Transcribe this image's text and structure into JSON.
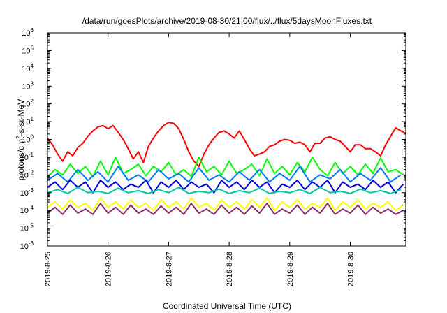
{
  "chart_data": {
    "type": "line",
    "title": "/data/run/goesPlots/archive/2019-08-30/21:00/flux/../flux/5daysMoonFluxes.txt",
    "xlabel": "Coordinated Universal Time (UTC)",
    "ylabel": "protons/cm²-s-sr-MeV",
    "ylabel_parts": {
      "pre": "protons/cm",
      "sup": "2",
      "post": "-s-sr-MeV"
    },
    "y_scale": "log",
    "ylim": [
      1e-06,
      1000000
    ],
    "xlim": [
      "2019-08-25T00:00",
      "2019-08-30T22:00"
    ],
    "y_ticks": [
      {
        "exp": "-6",
        "value": 1e-06
      },
      {
        "exp": "-5",
        "value": 1e-05
      },
      {
        "exp": "-4",
        "value": 0.0001
      },
      {
        "exp": "-3",
        "value": 0.001
      },
      {
        "exp": "-2",
        "value": 0.01
      },
      {
        "exp": "-1",
        "value": 0.1
      },
      {
        "exp": "0",
        "value": 1
      },
      {
        "exp": "1",
        "value": 10
      },
      {
        "exp": "2",
        "value": 100
      },
      {
        "exp": "3",
        "value": 1000
      },
      {
        "exp": "4",
        "value": 10000
      },
      {
        "exp": "5",
        "value": 100000
      },
      {
        "exp": "6",
        "value": 1000000
      }
    ],
    "y_tick_base": "10",
    "x_ticks": [
      {
        "label": "2019-8-25",
        "date": "2019-08-25T00:00"
      },
      {
        "label": "2019-8-26",
        "date": "2019-08-26T00:00"
      },
      {
        "label": "2019-8-27",
        "date": "2019-08-27T00:00"
      },
      {
        "label": "2019-8-28",
        "date": "2019-08-28T00:00"
      },
      {
        "label": "2019-8-29",
        "date": "2019-08-29T00:00"
      },
      {
        "label": "2019-8-30",
        "date": "2019-08-30T00:00"
      }
    ],
    "grid": false,
    "legend": "none",
    "series": [
      {
        "color": "#ff0000",
        "x": [
          "2019-08-25T00:00",
          "2019-08-25T02:00",
          "2019-08-25T04:00",
          "2019-08-25T06:00",
          "2019-08-25T08:00",
          "2019-08-25T10:00",
          "2019-08-25T12:00",
          "2019-08-25T14:00",
          "2019-08-25T16:00",
          "2019-08-25T18:00",
          "2019-08-25T20:00",
          "2019-08-25T22:00",
          "2019-08-26T00:00",
          "2019-08-26T02:00",
          "2019-08-26T04:00",
          "2019-08-26T06:00",
          "2019-08-26T08:00",
          "2019-08-26T10:00",
          "2019-08-26T12:00",
          "2019-08-26T14:00",
          "2019-08-26T16:00",
          "2019-08-26T18:00",
          "2019-08-26T20:00",
          "2019-08-26T22:00",
          "2019-08-27T00:00",
          "2019-08-27T02:00",
          "2019-08-27T04:00",
          "2019-08-27T06:00",
          "2019-08-27T08:00",
          "2019-08-27T10:00",
          "2019-08-27T12:00",
          "2019-08-27T14:00",
          "2019-08-27T16:00",
          "2019-08-27T18:00",
          "2019-08-27T20:00",
          "2019-08-27T22:00",
          "2019-08-28T00:00",
          "2019-08-28T02:00",
          "2019-08-28T04:00",
          "2019-08-28T06:00",
          "2019-08-28T08:00",
          "2019-08-28T10:00",
          "2019-08-28T12:00",
          "2019-08-28T14:00",
          "2019-08-28T16:00",
          "2019-08-28T18:00",
          "2019-08-28T20:00",
          "2019-08-28T22:00",
          "2019-08-29T00:00",
          "2019-08-29T02:00",
          "2019-08-29T04:00",
          "2019-08-29T06:00",
          "2019-08-29T08:00",
          "2019-08-29T10:00",
          "2019-08-29T12:00",
          "2019-08-29T14:00",
          "2019-08-29T16:00",
          "2019-08-29T18:00",
          "2019-08-29T20:00",
          "2019-08-29T22:00",
          "2019-08-30T00:00",
          "2019-08-30T02:00",
          "2019-08-30T04:00",
          "2019-08-30T06:00",
          "2019-08-30T08:00",
          "2019-08-30T10:00",
          "2019-08-30T12:00",
          "2019-08-30T14:00",
          "2019-08-30T16:00",
          "2019-08-30T18:00",
          "2019-08-30T20:00",
          "2019-08-30T22:00"
        ],
        "values": [
          1.2,
          0.5,
          0.15,
          0.06,
          0.2,
          0.12,
          0.35,
          0.6,
          1.5,
          3,
          5,
          6,
          4,
          6,
          2.5,
          1,
          0.3,
          0.08,
          0.2,
          0.05,
          0.4,
          1.2,
          3,
          6,
          9,
          8,
          4,
          1,
          0.2,
          0.06,
          0.03,
          0.15,
          0.5,
          1.2,
          2.5,
          3,
          2,
          1.2,
          3,
          1,
          0.3,
          0.12,
          0.15,
          0.2,
          0.4,
          0.5,
          0.8,
          1,
          0.9,
          0.6,
          0.7,
          0.5,
          0.2,
          0.6,
          0.6,
          1.2,
          1.4,
          1,
          0.8,
          0.4,
          0.2,
          0.5,
          0.5,
          0.3,
          0.3,
          0.2,
          0.12,
          0.5,
          1.5,
          4.5,
          3,
          2.2
        ]
      },
      {
        "color": "#00ff00",
        "x": [
          "2019-08-25T00:00",
          "2019-08-25T03:00",
          "2019-08-25T06:00",
          "2019-08-25T09:00",
          "2019-08-25T12:00",
          "2019-08-25T15:00",
          "2019-08-25T18:00",
          "2019-08-25T21:00",
          "2019-08-26T00:00",
          "2019-08-26T03:00",
          "2019-08-26T06:00",
          "2019-08-26T09:00",
          "2019-08-26T12:00",
          "2019-08-26T15:00",
          "2019-08-26T18:00",
          "2019-08-26T21:00",
          "2019-08-27T00:00",
          "2019-08-27T03:00",
          "2019-08-27T06:00",
          "2019-08-27T09:00",
          "2019-08-27T12:00",
          "2019-08-27T15:00",
          "2019-08-27T18:00",
          "2019-08-27T21:00",
          "2019-08-28T00:00",
          "2019-08-28T03:00",
          "2019-08-28T06:00",
          "2019-08-28T09:00",
          "2019-08-28T12:00",
          "2019-08-28T15:00",
          "2019-08-28T18:00",
          "2019-08-28T21:00",
          "2019-08-29T00:00",
          "2019-08-29T03:00",
          "2019-08-29T06:00",
          "2019-08-29T09:00",
          "2019-08-29T12:00",
          "2019-08-29T15:00",
          "2019-08-29T18:00",
          "2019-08-29T21:00",
          "2019-08-30T00:00",
          "2019-08-30T03:00",
          "2019-08-30T06:00",
          "2019-08-30T09:00",
          "2019-08-30T12:00",
          "2019-08-30T15:00",
          "2019-08-30T18:00",
          "2019-08-30T21:00"
        ],
        "values": [
          0.008,
          0.02,
          0.01,
          0.04,
          0.012,
          0.03,
          0.008,
          0.06,
          0.01,
          0.1,
          0.012,
          0.02,
          0.04,
          0.009,
          0.03,
          0.015,
          0.05,
          0.01,
          0.02,
          0.008,
          0.1,
          0.015,
          0.03,
          0.01,
          0.06,
          0.012,
          0.02,
          0.04,
          0.009,
          0.08,
          0.012,
          0.03,
          0.01,
          0.05,
          0.015,
          0.1,
          0.02,
          0.009,
          0.05,
          0.012,
          0.03,
          0.01,
          0.04,
          0.012,
          0.09,
          0.015,
          0.02,
          0.01
        ]
      },
      {
        "color": "#0078ff",
        "x": [
          "2019-08-25T00:00",
          "2019-08-25T04:00",
          "2019-08-25T08:00",
          "2019-08-25T12:00",
          "2019-08-25T16:00",
          "2019-08-25T20:00",
          "2019-08-26T00:00",
          "2019-08-26T04:00",
          "2019-08-26T08:00",
          "2019-08-26T12:00",
          "2019-08-26T16:00",
          "2019-08-26T20:00",
          "2019-08-27T00:00",
          "2019-08-27T04:00",
          "2019-08-27T08:00",
          "2019-08-27T12:00",
          "2019-08-27T16:00",
          "2019-08-27T20:00",
          "2019-08-28T00:00",
          "2019-08-28T04:00",
          "2019-08-28T08:00",
          "2019-08-28T12:00",
          "2019-08-28T16:00",
          "2019-08-28T20:00",
          "2019-08-29T00:00",
          "2019-08-29T04:00",
          "2019-08-29T08:00",
          "2019-08-29T12:00",
          "2019-08-29T16:00",
          "2019-08-29T20:00",
          "2019-08-30T00:00",
          "2019-08-30T04:00",
          "2019-08-30T08:00",
          "2019-08-30T12:00",
          "2019-08-30T16:00",
          "2019-08-30T20:00"
        ],
        "values": [
          0.005,
          0.012,
          0.004,
          0.02,
          0.005,
          0.015,
          0.004,
          0.03,
          0.005,
          0.01,
          0.004,
          0.02,
          0.006,
          0.012,
          0.004,
          0.025,
          0.005,
          0.01,
          0.004,
          0.015,
          0.005,
          0.02,
          0.004,
          0.012,
          0.005,
          0.03,
          0.004,
          0.01,
          0.006,
          0.02,
          0.004,
          0.012,
          0.005,
          0.025,
          0.004,
          0.01
        ]
      },
      {
        "color": "#0000dd",
        "x": [
          "2019-08-25T00:00",
          "2019-08-25T03:00",
          "2019-08-25T06:00",
          "2019-08-25T09:00",
          "2019-08-25T12:00",
          "2019-08-25T15:00",
          "2019-08-25T18:00",
          "2019-08-25T21:00",
          "2019-08-26T00:00",
          "2019-08-26T03:00",
          "2019-08-26T06:00",
          "2019-08-26T09:00",
          "2019-08-26T12:00",
          "2019-08-26T15:00",
          "2019-08-26T18:00",
          "2019-08-26T21:00",
          "2019-08-27T00:00",
          "2019-08-27T03:00",
          "2019-08-27T06:00",
          "2019-08-27T09:00",
          "2019-08-27T12:00",
          "2019-08-27T15:00",
          "2019-08-27T18:00",
          "2019-08-27T21:00",
          "2019-08-28T00:00",
          "2019-08-28T03:00",
          "2019-08-28T06:00",
          "2019-08-28T09:00",
          "2019-08-28T12:00",
          "2019-08-28T15:00",
          "2019-08-28T18:00",
          "2019-08-28T21:00",
          "2019-08-29T00:00",
          "2019-08-29T03:00",
          "2019-08-29T06:00",
          "2019-08-29T09:00",
          "2019-08-29T12:00",
          "2019-08-29T15:00",
          "2019-08-29T18:00",
          "2019-08-29T21:00",
          "2019-08-30T00:00",
          "2019-08-30T03:00",
          "2019-08-30T06:00",
          "2019-08-30T09:00",
          "2019-08-30T12:00",
          "2019-08-30T15:00",
          "2019-08-30T18:00",
          "2019-08-30T21:00"
        ],
        "values": [
          0.002,
          0.004,
          0.0015,
          0.005,
          0.002,
          0.004,
          0.001,
          0.005,
          0.002,
          0.004,
          0.0015,
          0.003,
          0.002,
          0.005,
          0.001,
          0.004,
          0.002,
          0.005,
          0.0015,
          0.004,
          0.002,
          0.003,
          0.001,
          0.005,
          0.002,
          0.004,
          0.0015,
          0.005,
          0.002,
          0.004,
          0.001,
          0.003,
          0.002,
          0.005,
          0.0015,
          0.004,
          0.002,
          0.005,
          0.001,
          0.004,
          0.002,
          0.003,
          0.0015,
          0.005,
          0.002,
          0.004,
          0.001,
          0.003
        ]
      },
      {
        "color": "#00c8a0",
        "x": [
          "2019-08-25T00:00",
          "2019-08-25T04:00",
          "2019-08-25T08:00",
          "2019-08-25T12:00",
          "2019-08-25T16:00",
          "2019-08-25T20:00",
          "2019-08-26T00:00",
          "2019-08-26T04:00",
          "2019-08-26T08:00",
          "2019-08-26T12:00",
          "2019-08-26T16:00",
          "2019-08-26T20:00",
          "2019-08-27T00:00",
          "2019-08-27T04:00",
          "2019-08-27T08:00",
          "2019-08-27T12:00",
          "2019-08-27T16:00",
          "2019-08-27T20:00",
          "2019-08-28T00:00",
          "2019-08-28T04:00",
          "2019-08-28T08:00",
          "2019-08-28T12:00",
          "2019-08-28T16:00",
          "2019-08-28T20:00",
          "2019-08-29T00:00",
          "2019-08-29T04:00",
          "2019-08-29T08:00",
          "2019-08-29T12:00",
          "2019-08-29T16:00",
          "2019-08-29T20:00",
          "2019-08-30T00:00",
          "2019-08-30T04:00",
          "2019-08-30T08:00",
          "2019-08-30T12:00",
          "2019-08-30T16:00",
          "2019-08-30T20:00"
        ],
        "values": [
          0.001,
          0.0015,
          0.0009,
          0.002,
          0.001,
          0.0012,
          0.0009,
          0.0018,
          0.001,
          0.0013,
          0.0009,
          0.0015,
          0.001,
          0.002,
          0.0009,
          0.0012,
          0.001,
          0.0016,
          0.0009,
          0.0013,
          0.001,
          0.0018,
          0.0009,
          0.0012,
          0.001,
          0.0015,
          0.0009,
          0.002,
          0.001,
          0.0012,
          0.0009,
          0.0016,
          0.001,
          0.0013,
          0.0009,
          0.0015
        ]
      },
      {
        "color": "#ffff00",
        "x": [
          "2019-08-25T00:00",
          "2019-08-25T03:00",
          "2019-08-25T06:00",
          "2019-08-25T09:00",
          "2019-08-25T12:00",
          "2019-08-25T15:00",
          "2019-08-25T18:00",
          "2019-08-25T21:00",
          "2019-08-26T00:00",
          "2019-08-26T03:00",
          "2019-08-26T06:00",
          "2019-08-26T09:00",
          "2019-08-26T12:00",
          "2019-08-26T15:00",
          "2019-08-26T18:00",
          "2019-08-26T21:00",
          "2019-08-27T00:00",
          "2019-08-27T03:00",
          "2019-08-27T06:00",
          "2019-08-27T09:00",
          "2019-08-27T12:00",
          "2019-08-27T15:00",
          "2019-08-27T18:00",
          "2019-08-27T21:00",
          "2019-08-28T00:00",
          "2019-08-28T03:00",
          "2019-08-28T06:00",
          "2019-08-28T09:00",
          "2019-08-28T12:00",
          "2019-08-28T15:00",
          "2019-08-28T18:00",
          "2019-08-28T21:00",
          "2019-08-29T00:00",
          "2019-08-29T03:00",
          "2019-08-29T06:00",
          "2019-08-29T09:00",
          "2019-08-29T12:00",
          "2019-08-29T15:00",
          "2019-08-29T18:00",
          "2019-08-29T21:00",
          "2019-08-30T00:00",
          "2019-08-30T03:00",
          "2019-08-30T06:00",
          "2019-08-30T09:00",
          "2019-08-30T12:00",
          "2019-08-30T15:00",
          "2019-08-30T18:00",
          "2019-08-30T21:00"
        ],
        "values": [
          0.00015,
          0.0003,
          0.00012,
          0.0004,
          0.00015,
          0.00025,
          0.0001,
          0.0005,
          0.00015,
          0.0003,
          0.00012,
          0.0004,
          0.00015,
          0.00025,
          0.0001,
          0.0004,
          0.00015,
          0.0003,
          0.00012,
          0.0005,
          0.00015,
          0.00025,
          0.0001,
          0.0004,
          0.00015,
          0.0003,
          0.00012,
          0.0004,
          0.00015,
          0.0005,
          0.0001,
          0.0003,
          0.00015,
          0.0004,
          0.00012,
          0.00025,
          0.00015,
          0.0005,
          0.0001,
          0.0003,
          0.00015,
          0.0004,
          0.00012,
          0.00025,
          0.00015,
          0.0003,
          0.0001,
          0.0002
        ]
      },
      {
        "color": "#8b2c6e",
        "x": [
          "2019-08-25T00:00",
          "2019-08-25T03:00",
          "2019-08-25T06:00",
          "2019-08-25T09:00",
          "2019-08-25T12:00",
          "2019-08-25T15:00",
          "2019-08-25T18:00",
          "2019-08-25T21:00",
          "2019-08-26T00:00",
          "2019-08-26T03:00",
          "2019-08-26T06:00",
          "2019-08-26T09:00",
          "2019-08-26T12:00",
          "2019-08-26T15:00",
          "2019-08-26T18:00",
          "2019-08-26T21:00",
          "2019-08-27T00:00",
          "2019-08-27T03:00",
          "2019-08-27T06:00",
          "2019-08-27T09:00",
          "2019-08-27T12:00",
          "2019-08-27T15:00",
          "2019-08-27T18:00",
          "2019-08-27T21:00",
          "2019-08-28T00:00",
          "2019-08-28T03:00",
          "2019-08-28T06:00",
          "2019-08-28T09:00",
          "2019-08-28T12:00",
          "2019-08-28T15:00",
          "2019-08-28T18:00",
          "2019-08-28T21:00",
          "2019-08-29T00:00",
          "2019-08-29T03:00",
          "2019-08-29T06:00",
          "2019-08-29T09:00",
          "2019-08-29T12:00",
          "2019-08-29T15:00",
          "2019-08-29T18:00",
          "2019-08-29T21:00",
          "2019-08-30T00:00",
          "2019-08-30T03:00",
          "2019-08-30T06:00",
          "2019-08-30T09:00",
          "2019-08-30T12:00",
          "2019-08-30T15:00",
          "2019-08-30T18:00",
          "2019-08-30T21:00"
        ],
        "values": [
          7e-05,
          0.00015,
          6e-05,
          0.0002,
          7e-05,
          0.00012,
          6e-05,
          0.00025,
          7e-05,
          0.00015,
          6e-05,
          0.0002,
          7e-05,
          0.00012,
          6e-05,
          0.00018,
          7e-05,
          0.00015,
          6e-05,
          0.00025,
          7e-05,
          0.00012,
          6e-05,
          0.0002,
          7e-05,
          0.00015,
          6e-05,
          0.00018,
          7e-05,
          0.00025,
          6e-05,
          0.00012,
          7e-05,
          0.0002,
          6e-05,
          0.00015,
          7e-05,
          0.00025,
          6e-05,
          0.00012,
          7e-05,
          0.0002,
          6e-05,
          0.00015,
          7e-05,
          0.00012,
          6e-05,
          0.0001
        ]
      }
    ]
  }
}
